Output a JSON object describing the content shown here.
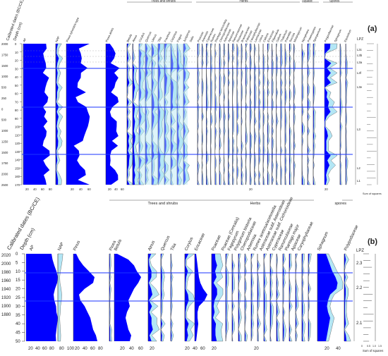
{
  "panel_a": {
    "label": "(a)",
    "axis_age": "Calibrated dates (BC/CE)",
    "axis_depth": "Depth (cm)",
    "group_trees": "Trees and shrubs",
    "group_herbs": "Herbs",
    "group_aquatic": "Aquatic",
    "group_spores": "Spores",
    "lpz_title": "LPZ",
    "zones": [
      "L3c",
      "L3b",
      "L3a",
      "L3f",
      "L3e",
      "L3",
      "L2",
      "L1"
    ],
    "cluster_caption": "Sum of squares",
    "age_ticks": [
      "2000",
      "1750",
      "1500",
      "1000",
      "500",
      "250",
      "0",
      "500",
      "1000",
      "1250",
      "1500",
      "1750",
      "2000",
      "2500"
    ],
    "depth_ticks": [
      "0",
      "10",
      "20",
      "30",
      "40",
      "50",
      "60",
      "70",
      "80",
      "90",
      "100",
      "110",
      "120",
      "130",
      "140",
      "150",
      "160",
      "170"
    ],
    "ap_ticks": [
      "20",
      "40",
      "60",
      "80"
    ],
    "pinus_ticks": [
      "20",
      "40",
      "60"
    ],
    "betula_ticks": [
      "20",
      "40",
      "60"
    ],
    "herb_tick": "20",
    "aqua_tick": "20",
    "taxa_left": [
      "AP",
      "NAP",
      "Pinus sylvestris-type",
      "Picea abies",
      "Betula",
      "Alnus",
      "Corylus",
      "Quercus",
      "Ulmus",
      "Tilia",
      "Fraxinus",
      "Carpinus",
      "Fagus",
      "Juniperus",
      "Salix"
    ],
    "taxa_herbs": [
      "Poaceae",
      "Artemisia",
      "Cyperaceae",
      "Rumex",
      "Plantago lanceolata",
      "Chenopodiaceae",
      "Asteraceae",
      "Apiaceae",
      "Ranunculaceae",
      "Rosaceae",
      "Brassicaceae",
      "Fabaceae",
      "Caryophyllaceae",
      "Lamiaceae",
      "Urtica",
      "Calluna",
      "Ericaceae",
      "Filipendula",
      "Galium",
      "Thalictrum",
      "Potentilla",
      "Succisa",
      "Melampyrum"
    ],
    "taxa_aqua": [
      "Nymphaea",
      "Potamogeton",
      "Sparganium"
    ],
    "taxa_spores": [
      "Polypodiaceae",
      "Sphagnum",
      "Equisetum"
    ]
  },
  "panel_b": {
    "label": "(b)",
    "axis_age": "Calibrated dates (BC/CE)",
    "axis_depth": "Depth (cm)",
    "group_trees": "Trees and shrubs",
    "group_herbs": "Herbs",
    "group_spores": "spores",
    "lpz_title": "LPZ",
    "zones": [
      "2.3",
      "2.2",
      "2.1"
    ],
    "cluster_caption": "Sum of squares",
    "cluster_ticks": [
      "0",
      "0.5",
      "1.0",
      "1.5"
    ],
    "age_ticks": [
      "2020",
      "2000",
      "1980",
      "1960",
      "1940",
      "1920",
      "1900",
      "1880"
    ],
    "depth_ticks": [
      "0",
      "5",
      "10",
      "15",
      "20",
      "25",
      "30",
      "35",
      "40",
      "45",
      "50"
    ],
    "ap_ticks": [
      "20",
      "40",
      "60",
      "80"
    ],
    "nap_ticks": [
      "80",
      "100"
    ],
    "pinus_ticks": [
      "20",
      "40",
      "60",
      "80"
    ],
    "betula_ticks": [
      "20",
      "40",
      "60"
    ],
    "alnus_tick": "20",
    "corylus_ticks": [
      "20",
      "40",
      "60"
    ],
    "poaceae_ticks": [
      "20"
    ],
    "herb_tick": "20",
    "spore_ticks": [
      "20",
      "40"
    ],
    "taxa": [
      "AP",
      "NAP",
      "Pinus",
      "Picea",
      "Betula",
      "Alnus",
      "Quercus",
      "Tilia",
      "Corylus",
      "Ericaceae",
      "Poaceae",
      "Poaceae (Cerealia)",
      "Fagopyrum",
      "Polygonum bistorta",
      "Chenopodiaceae",
      "Artemisia",
      "Rumex acetosa/acetosella",
      "Asteraceae subf. Asteroideae",
      "Asteraceae subf. Cichorioideae",
      "Cyperaceae",
      "Ranunculaceae",
      "Plantago major",
      "Apiaceae",
      "Caryophyllaceae",
      "Sphagnum",
      "Polypodiaceae"
    ]
  },
  "colors": {
    "fill_dark": "#0000ff",
    "fill_light": "#b3e6f5",
    "zone_line": "#1a33ff",
    "ink": "#222222"
  }
}
